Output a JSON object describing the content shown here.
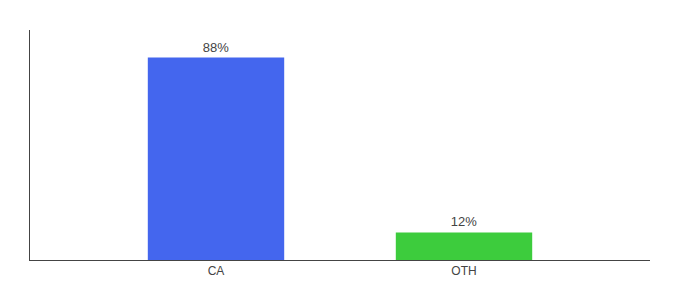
{
  "chart_data": {
    "type": "bar",
    "categories": [
      "CA",
      "OTH"
    ],
    "values": [
      88,
      12
    ],
    "value_labels": [
      "88%",
      "12%"
    ],
    "colors": [
      "#4466ee",
      "#3dcc3d"
    ],
    "ylim": [
      0,
      100
    ],
    "data_labels": true,
    "tick_labels": "x",
    "grid": false
  }
}
